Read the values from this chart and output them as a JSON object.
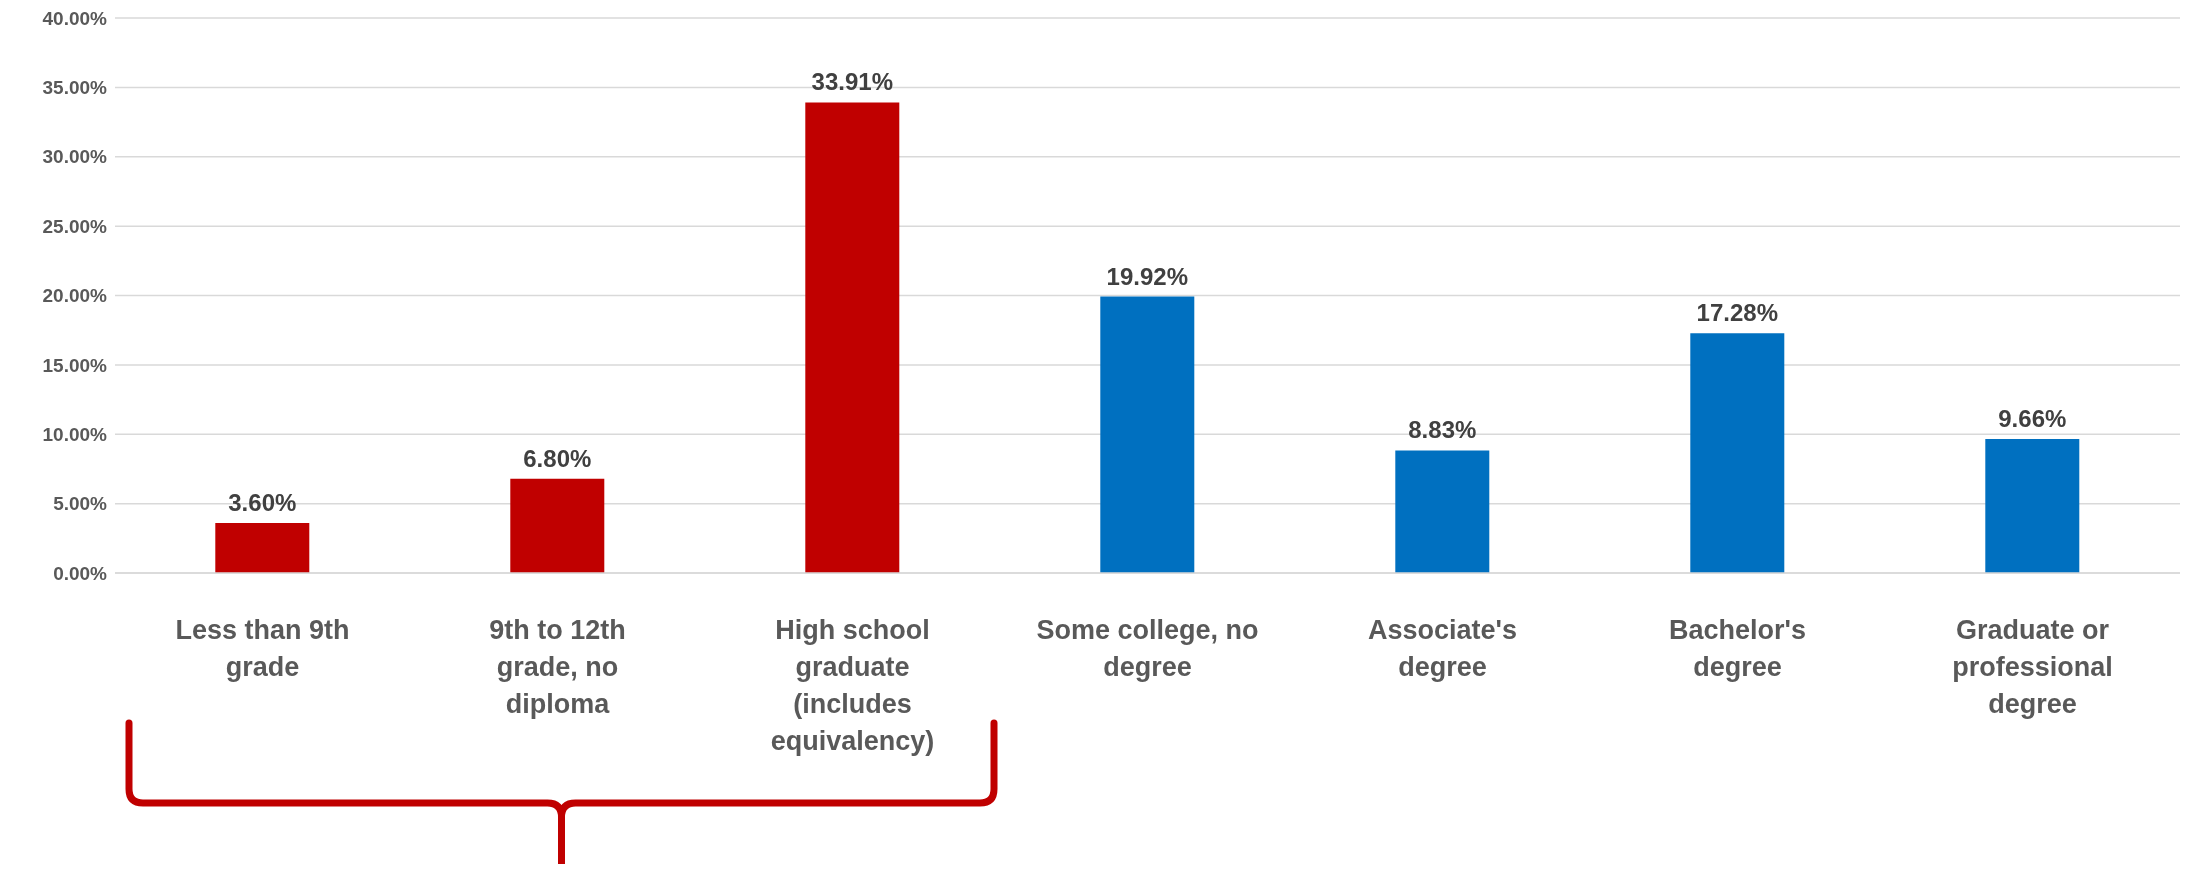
{
  "chart_data": {
    "type": "bar",
    "categories": [
      "Less than 9th grade",
      "9th to 12th grade, no diploma",
      "High school graduate (includes equivalency)",
      "Some college, no degree",
      "Associate's degree",
      "Bachelor's degree",
      "Graduate or professional degree"
    ],
    "values": [
      3.6,
      6.8,
      33.91,
      19.92,
      8.83,
      17.28,
      9.66
    ],
    "colors": [
      "#c00000",
      "#c00000",
      "#c00000",
      "#0070c0",
      "#0070c0",
      "#0070c0",
      "#0070c0"
    ],
    "value_labels": [
      "3.60%",
      "6.80%",
      "33.91%",
      "19.92%",
      "8.83%",
      "17.28%",
      "9.66%"
    ],
    "ylim": [
      0,
      40
    ],
    "yticks": [
      {
        "value": 0,
        "label": "0.00%"
      },
      {
        "value": 5,
        "label": "5.00%"
      },
      {
        "value": 10,
        "label": "10.00%"
      },
      {
        "value": 15,
        "label": "15.00%"
      },
      {
        "value": 20,
        "label": "20.00%"
      },
      {
        "value": 25,
        "label": "25.00%"
      },
      {
        "value": 30,
        "label": "30.00%"
      },
      {
        "value": 35,
        "label": "35.00%"
      },
      {
        "value": 40,
        "label": "40.00%"
      }
    ],
    "grid": "y",
    "legend": false
  }
}
